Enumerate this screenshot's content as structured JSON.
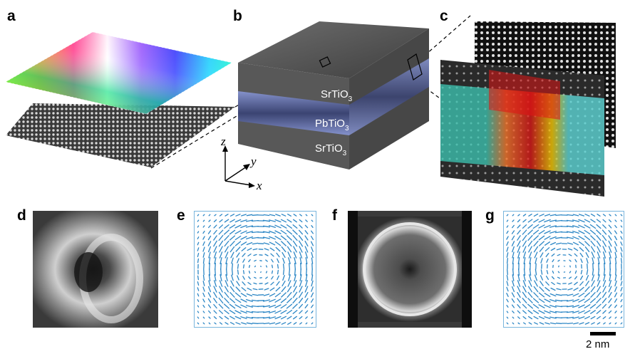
{
  "panels": {
    "a": "a",
    "b": "b",
    "c": "c",
    "d": "d",
    "e": "e",
    "f": "f",
    "g": "g"
  },
  "layers": {
    "top": {
      "base": "SrTiO",
      "sub": "3"
    },
    "middle": {
      "base": "PbTiO",
      "sub": "3"
    },
    "bottom": {
      "base": "SrTiO",
      "sub": "3"
    }
  },
  "axes": {
    "z": "z",
    "y": "y",
    "x": "x"
  },
  "scale_bar": {
    "label": "2 nm"
  },
  "colors": {
    "pto_layer": "#5f6fa8",
    "sto_layer": "#6a6a6a",
    "vector_blue": "#2b86c5",
    "frame_blue": "#7ab6dd"
  }
}
